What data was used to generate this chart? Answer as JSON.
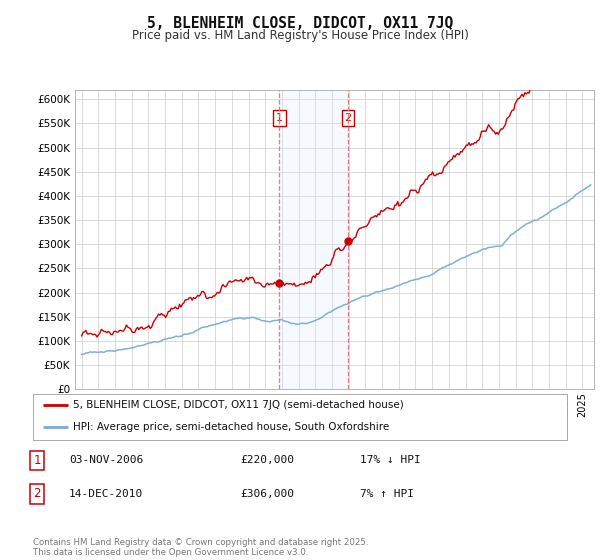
{
  "title": "5, BLENHEIM CLOSE, DIDCOT, OX11 7JQ",
  "subtitle": "Price paid vs. HM Land Registry's House Price Index (HPI)",
  "ylim": [
    0,
    620000
  ],
  "yticks": [
    0,
    50000,
    100000,
    150000,
    200000,
    250000,
    300000,
    350000,
    400000,
    450000,
    500000,
    550000,
    600000
  ],
  "sale1_date_num": 2006.84,
  "sale1_price": 220000,
  "sale2_date_num": 2010.95,
  "sale2_price": 306000,
  "sale1_label": "1",
  "sale2_label": "2",
  "red_line_color": "#cc0000",
  "blue_line_color": "#7aadcf",
  "shade_color": "#ddeeff",
  "vline_color": "#e87070",
  "marker_color": "#cc0000",
  "legend_entry1": "5, BLENHEIM CLOSE, DIDCOT, OX11 7JQ (semi-detached house)",
  "legend_entry2": "HPI: Average price, semi-detached house, South Oxfordshire",
  "table_row1_box": "1",
  "table_row1_date": "03-NOV-2006",
  "table_row1_price": "£220,000",
  "table_row1_hpi": "17% ↓ HPI",
  "table_row2_box": "2",
  "table_row2_date": "14-DEC-2010",
  "table_row2_price": "£306,000",
  "table_row2_hpi": "7% ↑ HPI",
  "footer": "Contains HM Land Registry data © Crown copyright and database right 2025.\nThis data is licensed under the Open Government Licence v3.0.",
  "background_color": "#ffffff",
  "grid_color": "#cccccc"
}
